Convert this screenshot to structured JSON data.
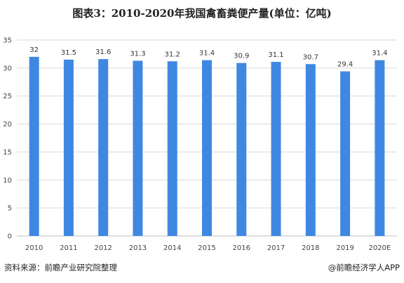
{
  "title": "图表3：2010-2020年我国禽畜粪便产量(单位：亿吨)",
  "source": "资料来源：前瞻产业研究院整理",
  "credit": "@前瞻经济学人APP",
  "colors": {
    "bar": "#3f88e2",
    "grid": "#d9d9d9",
    "axis": "#bfbfbf"
  },
  "chart_data": {
    "type": "bar",
    "title": "图表3：2010-2020年我国禽畜粪便产量(单位：亿吨)",
    "categories": [
      "2010",
      "2011",
      "2012",
      "2013",
      "2014",
      "2015",
      "2016",
      "2017",
      "2018",
      "2019",
      "2020E"
    ],
    "values": [
      32,
      31.5,
      31.6,
      31.3,
      31.2,
      31.4,
      30.9,
      31.1,
      30.7,
      29.4,
      31.4
    ],
    "value_labels": [
      "32",
      "31.5",
      "31.6",
      "31.3",
      "31.2",
      "31.4",
      "30.9",
      "31.1",
      "30.7",
      "29.4",
      "31.4"
    ],
    "yticks": [
      "0",
      "5",
      "10",
      "15",
      "20",
      "25",
      "30",
      "35"
    ],
    "ylim": [
      0,
      35
    ],
    "xlabel": "",
    "ylabel": "",
    "grid": true,
    "legend": "none"
  }
}
